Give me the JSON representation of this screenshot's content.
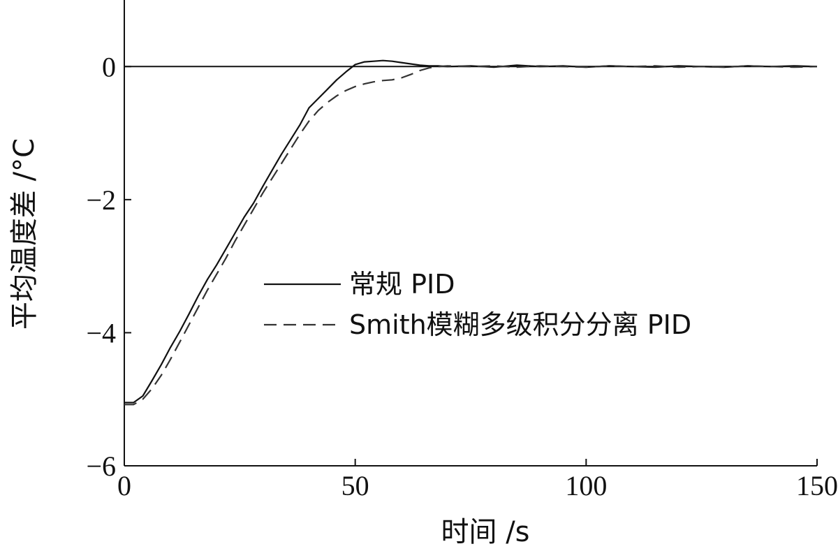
{
  "chart_data": {
    "type": "line",
    "xlabel": "时间 /s",
    "ylabel": "平均温度差 /°C",
    "xlim": [
      0,
      150
    ],
    "ylim": [
      -6,
      1
    ],
    "xticks": [
      0,
      50,
      100,
      150
    ],
    "xtick_labels": [
      "0",
      "50",
      "100",
      "150"
    ],
    "yticks": [
      0,
      -2,
      -4,
      -6
    ],
    "ytick_labels": [
      "0",
      "−2",
      "−4",
      "−6"
    ],
    "grid": false,
    "legend_position": "center",
    "reference_line": 0,
    "series": [
      {
        "name": "常规 PID",
        "style": "solid",
        "color": "#111111",
        "x": [
          0,
          2,
          4,
          6,
          8,
          10,
          12,
          14,
          16,
          18,
          20,
          22,
          24,
          26,
          28,
          30,
          32,
          34,
          36,
          38,
          40,
          42,
          44,
          46,
          48,
          50,
          52,
          54,
          56,
          58,
          60,
          62,
          64,
          66,
          68,
          70,
          75,
          80,
          85,
          90,
          95,
          100,
          105,
          110,
          115,
          120,
          125,
          130,
          135,
          140,
          145,
          150
        ],
        "y": [
          -5.05,
          -5.05,
          -4.95,
          -4.72,
          -4.48,
          -4.22,
          -3.98,
          -3.72,
          -3.45,
          -3.2,
          -2.98,
          -2.74,
          -2.5,
          -2.26,
          -2.05,
          -1.8,
          -1.56,
          -1.32,
          -1.1,
          -0.88,
          -0.62,
          -0.48,
          -0.34,
          -0.2,
          -0.08,
          0.03,
          0.07,
          0.08,
          0.09,
          0.08,
          0.06,
          0.04,
          0.02,
          0.01,
          0.01,
          0.0,
          0.01,
          -0.01,
          0.02,
          0.0,
          0.01,
          -0.01,
          0.01,
          0.0,
          -0.01,
          0.01,
          0.0,
          -0.01,
          0.01,
          0.0,
          0.01,
          0.0
        ]
      },
      {
        "name": "Smith模糊多级积分分离 PID",
        "style": "dashed",
        "color": "#333333",
        "x": [
          0,
          2,
          4,
          6,
          8,
          10,
          12,
          14,
          16,
          18,
          20,
          22,
          24,
          26,
          28,
          30,
          32,
          34,
          36,
          38,
          40,
          42,
          44,
          46,
          48,
          50,
          52,
          54,
          56,
          58,
          60,
          62,
          64,
          66,
          68,
          70,
          75,
          80,
          85,
          90,
          95,
          100,
          105,
          110,
          115,
          120,
          125,
          130,
          135,
          140,
          145,
          150
        ],
        "y": [
          -5.08,
          -5.08,
          -5.0,
          -4.84,
          -4.64,
          -4.4,
          -4.14,
          -3.88,
          -3.62,
          -3.36,
          -3.12,
          -2.88,
          -2.62,
          -2.38,
          -2.14,
          -1.9,
          -1.68,
          -1.46,
          -1.24,
          -1.02,
          -0.82,
          -0.66,
          -0.54,
          -0.44,
          -0.36,
          -0.3,
          -0.26,
          -0.23,
          -0.21,
          -0.2,
          -0.17,
          -0.12,
          -0.06,
          -0.02,
          0.0,
          0.01,
          0.0,
          0.01,
          -0.01,
          0.01,
          0.0,
          -0.01,
          0.01,
          0.0,
          0.01,
          -0.01,
          0.0,
          -0.01,
          0.01,
          0.0,
          -0.01,
          0.0
        ]
      }
    ]
  }
}
